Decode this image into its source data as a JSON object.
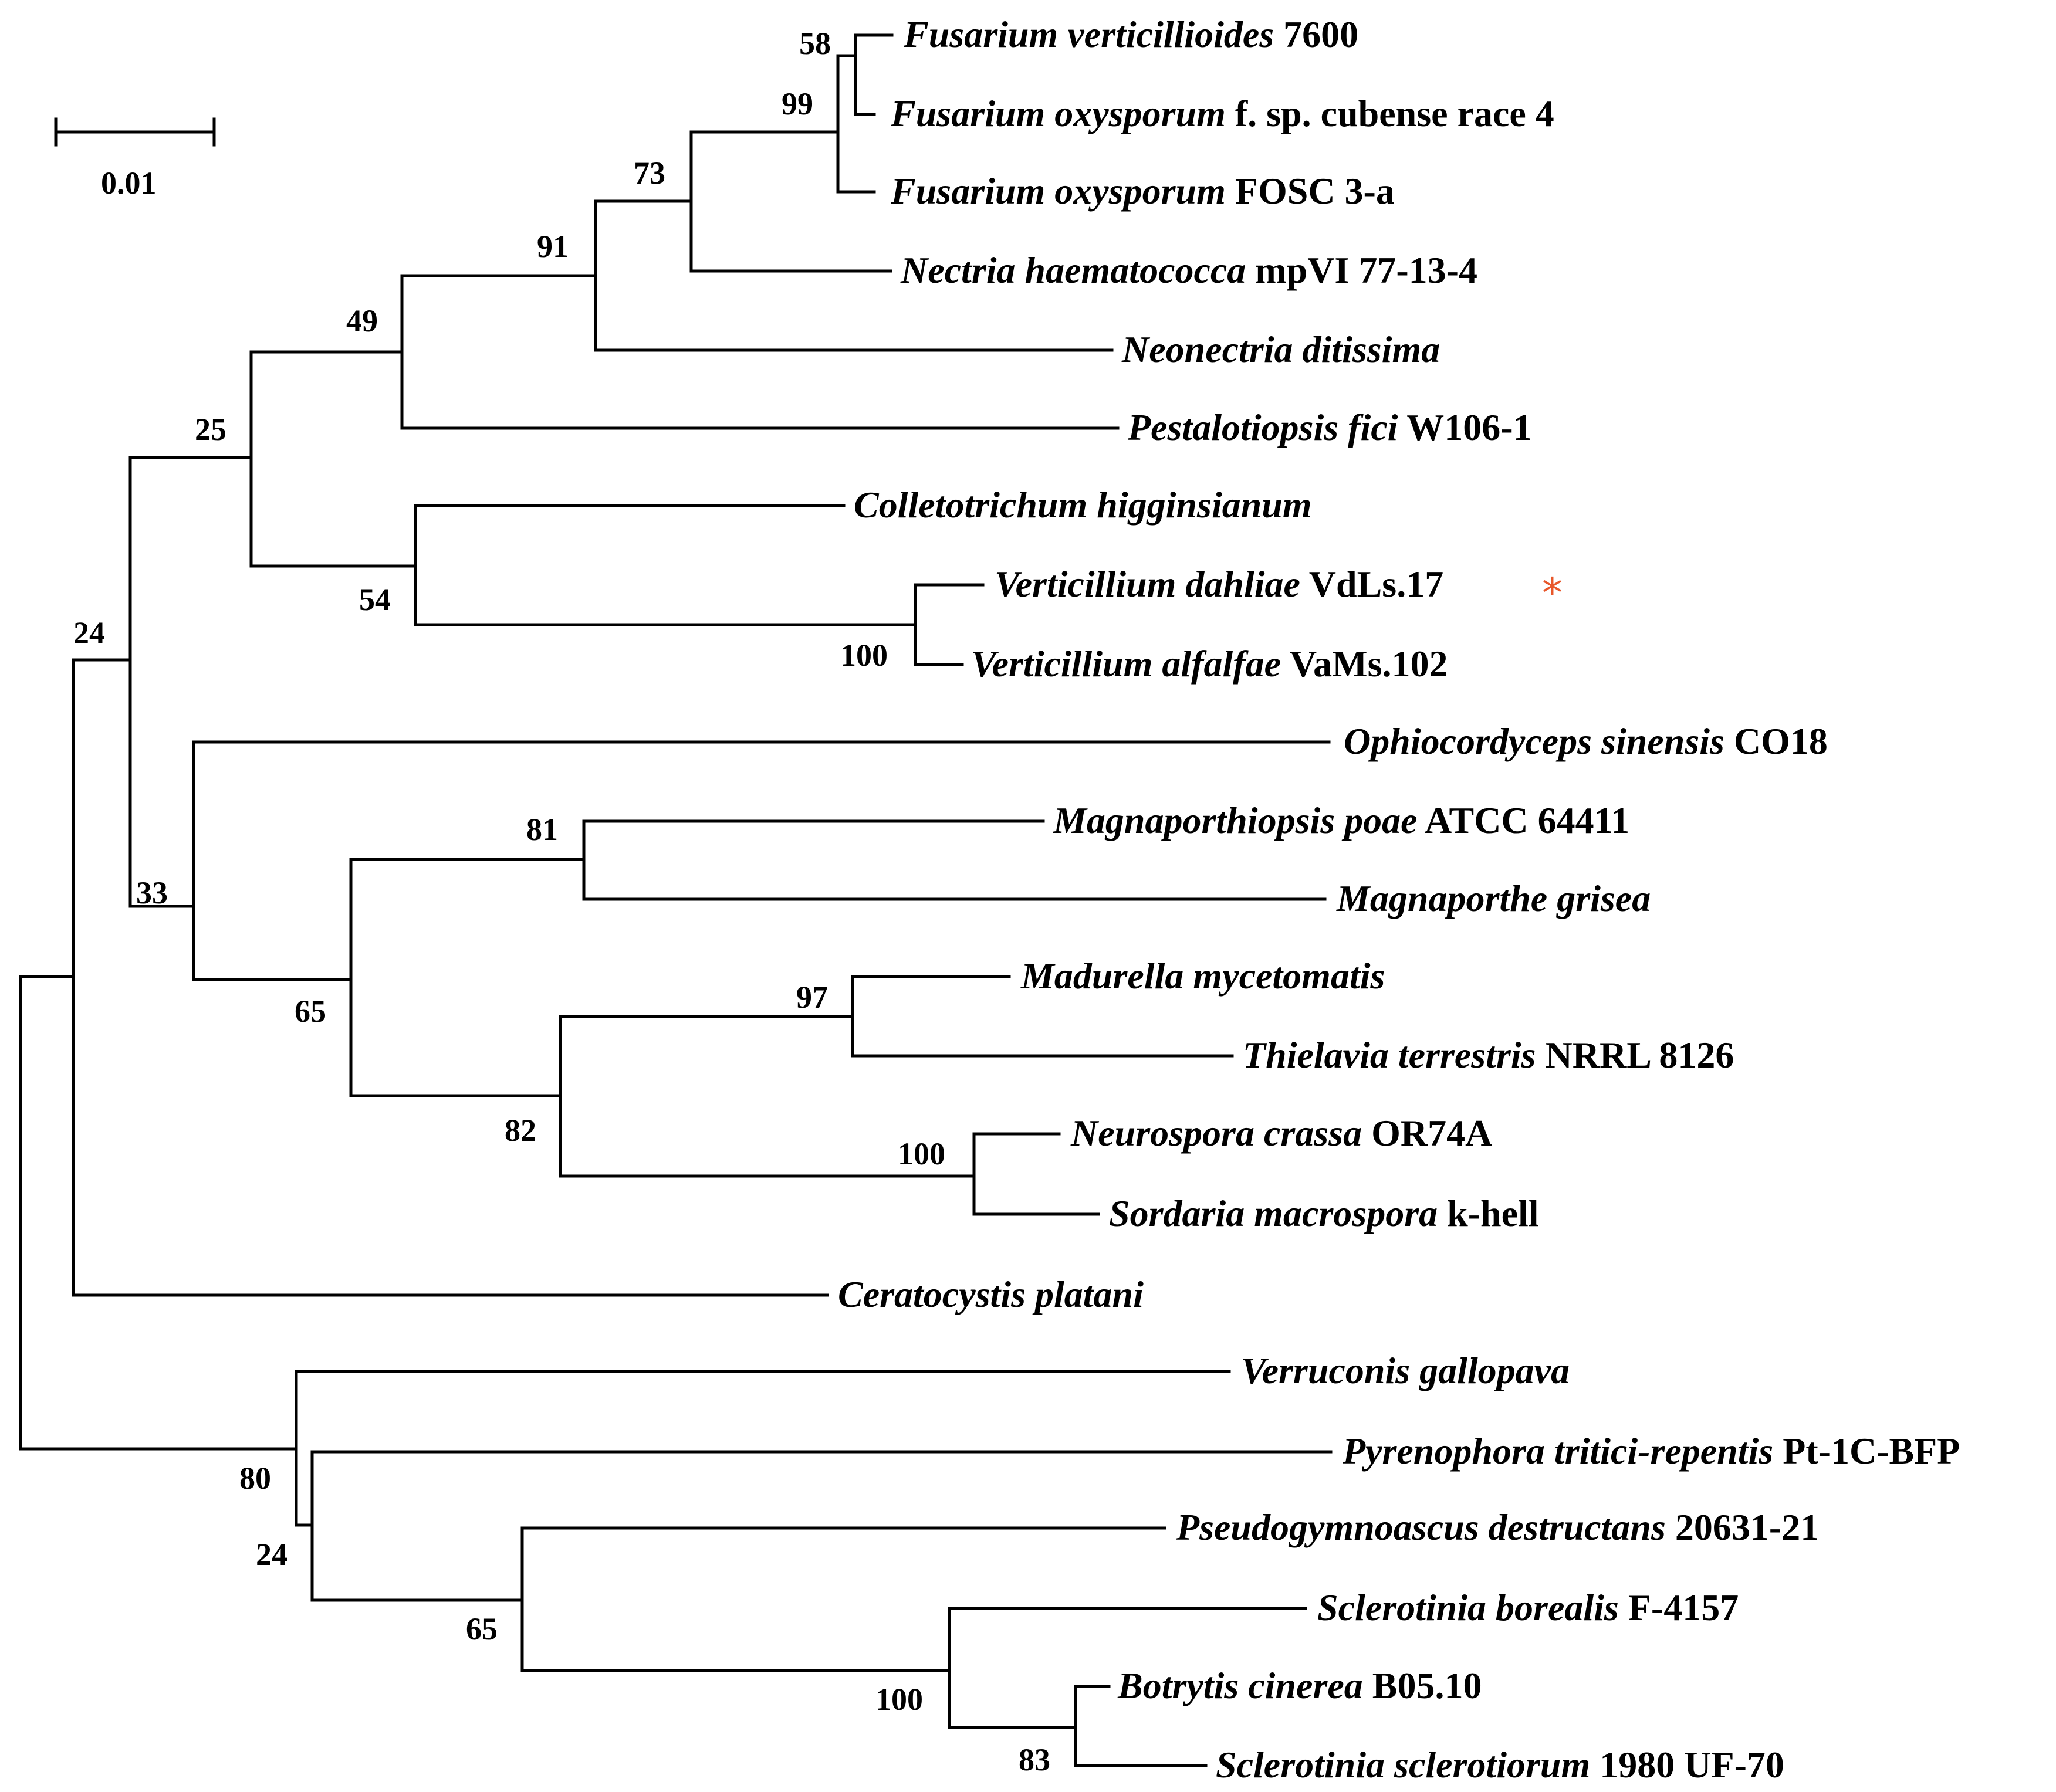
{
  "figure": {
    "type": "phylogenetic_tree",
    "accent_color": "#e8572a",
    "scale_bar": {
      "label": "0.01"
    }
  },
  "taxa": [
    {
      "id": "t1",
      "name": "Fusarium verticillioides",
      "suffix": "7600"
    },
    {
      "id": "t2",
      "name": "Fusarium oxysporum",
      "suffix": "f. sp. cubense race 4"
    },
    {
      "id": "t3",
      "name": "Fusarium oxysporum",
      "suffix": "FOSC 3-a"
    },
    {
      "id": "t4",
      "name": "Nectria haematococca",
      "suffix": "mpVI 77-13-4"
    },
    {
      "id": "t5",
      "name": "Neonectria ditissima",
      "suffix": ""
    },
    {
      "id": "t6",
      "name": "Pestalotiopsis fici",
      "suffix": "W106-1"
    },
    {
      "id": "t7",
      "name": "Colletotrichum higginsianum",
      "suffix": ""
    },
    {
      "id": "t8",
      "name": "Verticillium dahliae",
      "suffix": "VdLs.17",
      "marker": "*"
    },
    {
      "id": "t9",
      "name": "Verticillium alfalfae",
      "suffix": "VaMs.102"
    },
    {
      "id": "t10",
      "name": "Ophiocordyceps sinensis",
      "suffix": "CO18"
    },
    {
      "id": "t11",
      "name": "Magnaporthiopsis poae",
      "suffix": "ATCC 64411"
    },
    {
      "id": "t12",
      "name": "Magnaporthe grisea",
      "suffix": ""
    },
    {
      "id": "t13",
      "name": "Madurella mycetomatis",
      "suffix": ""
    },
    {
      "id": "t14",
      "name": "Thielavia terrestris",
      "suffix": "NRRL 8126"
    },
    {
      "id": "t15",
      "name": "Neurospora crassa",
      "suffix": "OR74A"
    },
    {
      "id": "t16",
      "name": "Sordaria macrospora",
      "suffix": "k-hell"
    },
    {
      "id": "t17",
      "name": "Ceratocystis platani",
      "suffix": ""
    },
    {
      "id": "t18",
      "name": "Verruconis gallopava",
      "suffix": ""
    },
    {
      "id": "t19",
      "name": "Pyrenophora tritici-repentis",
      "suffix": "Pt-1C-BFP"
    },
    {
      "id": "t20",
      "name": "Pseudogymnoascus destructans",
      "suffix": "20631-21"
    },
    {
      "id": "t21",
      "name": "Sclerotinia borealis",
      "suffix": "F-4157"
    },
    {
      "id": "t22",
      "name": "Botrytis cinerea",
      "suffix": "B05.10"
    },
    {
      "id": "t23",
      "name": "Sclerotinia sclerotiorum",
      "suffix": "1980 UF-70"
    }
  ],
  "bootstrap": {
    "fusarium_ver_oxy_cubense": "58",
    "fusarium_clade": "99",
    "fusarium_nectria": "73",
    "nectriaceae_plus_neonectria": "91",
    "with_pestalotiopsis": "49",
    "sordariomycete_upper": "25",
    "colletotrichum_verticillium": "54",
    "verticillium_pair": "100",
    "upper_lower_join": "24",
    "ophiocordyceps_group": "33",
    "magnaporthales": "81",
    "magna_sordariales": "65",
    "sordariales": "82",
    "madurella_thielavia": "97",
    "neurospora_sordaria": "100",
    "outgroup_root": "80",
    "pyrenophora_group": "24",
    "leotiomycetes": "65",
    "sclerotiniaceae": "100",
    "botrytis_sclerotinia": "83"
  }
}
